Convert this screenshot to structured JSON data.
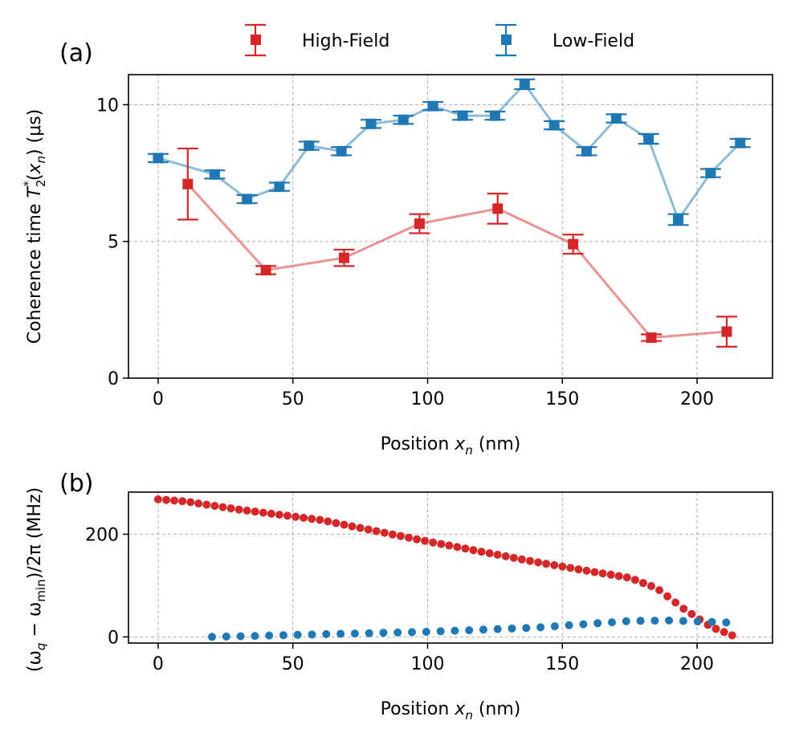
{
  "colors": {
    "high_field": "#d62728",
    "low_field": "#1f77b4"
  },
  "legend": {
    "high_label": "High-Field",
    "low_label": "Low-Field"
  },
  "chart_data": [
    {
      "panel_label": "(a)",
      "type": "line",
      "xlabel_prefix": "Position ",
      "xlabel_var": "x",
      "xlabel_sub": "n",
      "xlabel_suffix": " (nm)",
      "ylabel_prefix": "Coherence time ",
      "ylabel_T": "T",
      "ylabel_sub": "2",
      "ylabel_sup": "*",
      "ylabel_mid": "(",
      "ylabel_x": "x",
      "ylabel_xsub": "n",
      "ylabel_mu": ") (μs)",
      "xlim": [
        -11,
        228
      ],
      "ylim": [
        0,
        11.1
      ],
      "xticks": [
        0,
        50,
        100,
        150,
        200
      ],
      "xtick_labels": [
        "0",
        "50",
        "100",
        "150",
        "200"
      ],
      "yticks": [
        0,
        5,
        10
      ],
      "ytick_labels": [
        "0",
        "5",
        "10"
      ],
      "grid": true,
      "series": [
        {
          "name": "High-Field",
          "x": [
            11,
            40,
            69,
            97,
            126,
            154,
            183,
            211
          ],
          "y": [
            7.1,
            3.95,
            4.4,
            5.65,
            6.2,
            4.9,
            1.48,
            1.7
          ],
          "err": [
            1.3,
            0.15,
            0.3,
            0.35,
            0.55,
            0.35,
            0.12,
            0.55
          ]
        },
        {
          "name": "Low-Field",
          "x": [
            0,
            21,
            33,
            45,
            56,
            68,
            79,
            91,
            102,
            113,
            125,
            136,
            147,
            159,
            170,
            182,
            193,
            205,
            216
          ],
          "y": [
            8.05,
            7.45,
            6.55,
            7.0,
            8.5,
            8.3,
            9.3,
            9.45,
            9.95,
            9.6,
            9.6,
            10.75,
            9.25,
            8.3,
            9.5,
            8.75,
            5.8,
            7.5,
            8.6
          ],
          "err": [
            0.15,
            0.15,
            0.15,
            0.15,
            0.15,
            0.15,
            0.15,
            0.15,
            0.15,
            0.15,
            0.15,
            0.18,
            0.15,
            0.15,
            0.15,
            0.18,
            0.2,
            0.15,
            0.15
          ]
        }
      ]
    },
    {
      "panel_label": "(b)",
      "type": "scatter",
      "xlabel_prefix": "Position ",
      "xlabel_var": "x",
      "xlabel_sub": "n",
      "xlabel_suffix": " (nm)",
      "ylabel_text": "(ω",
      "ylabel_q": "q",
      "ylabel_minus": " − ω",
      "ylabel_min": "min",
      "ylabel_rest": ")/2π (MHz)",
      "xlim": [
        -11,
        228
      ],
      "ylim": [
        -12,
        282
      ],
      "xticks": [
        0,
        50,
        100,
        150,
        200
      ],
      "xtick_labels": [
        "0",
        "50",
        "100",
        "150",
        "200"
      ],
      "yticks": [
        0,
        200
      ],
      "ytick_labels": [
        "0",
        "200"
      ],
      "grid": true,
      "series": [
        {
          "name": "High-Field",
          "x_start": 0,
          "x_end": 213,
          "step": 3,
          "anchors_x": [
            0,
            10,
            30,
            60,
            100,
            140,
            160,
            175,
            185,
            195,
            205,
            213
          ],
          "anchors_y": [
            268,
            264,
            248,
            228,
            186,
            146,
            128,
            115,
            95,
            55,
            20,
            3
          ]
        },
        {
          "name": "Low-Field",
          "x_start": 20,
          "x_end": 211,
          "step": 5.3,
          "anchors_x": [
            20,
            60,
            100,
            140,
            175,
            190,
            211
          ],
          "anchors_y": [
            0,
            5,
            10,
            18,
            31,
            32,
            28
          ]
        }
      ]
    }
  ]
}
